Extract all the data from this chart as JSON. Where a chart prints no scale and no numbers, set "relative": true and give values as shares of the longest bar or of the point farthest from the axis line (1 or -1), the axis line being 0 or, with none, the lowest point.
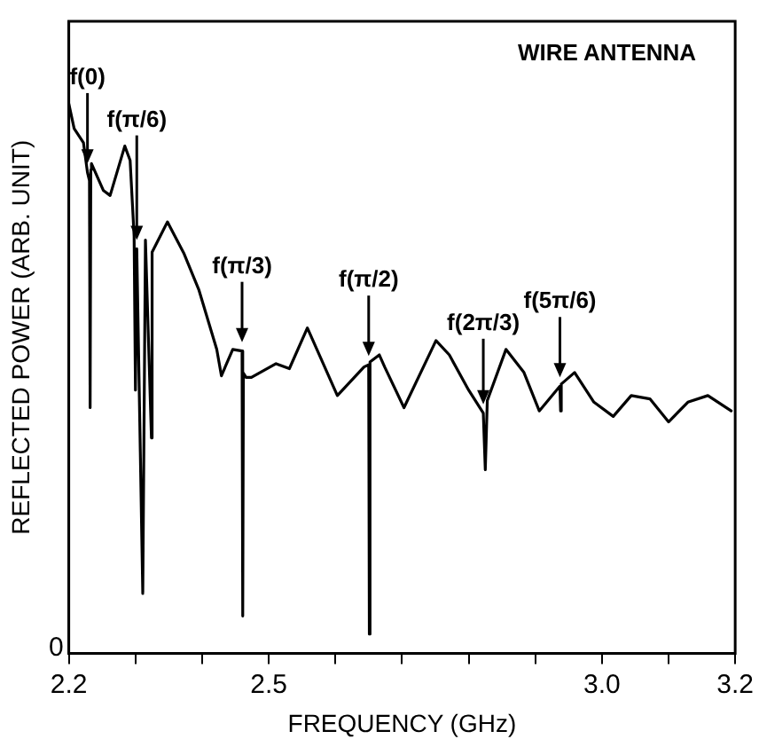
{
  "chart_data": {
    "type": "line",
    "xlabel": "FREQUENCY (GHz)",
    "ylabel": "REFLECTED POWER (ARB. UNIT)",
    "relative": true,
    "xlim": [
      2.2,
      3.2
    ],
    "xticks": [
      2.2,
      {
        "value": 2.3,
        "label": null
      },
      {
        "value": 2.4,
        "label": null
      },
      2.5,
      {
        "value": 2.6,
        "label": null
      },
      {
        "value": 2.7,
        "label": null
      },
      {
        "value": 2.8,
        "label": null
      },
      {
        "value": 2.9,
        "label": null
      },
      {
        "value": 3.0,
        "label": "3.0"
      },
      {
        "value": 3.1,
        "label": null
      },
      3.2
    ],
    "series": [
      {
        "color": "#000000",
        "x": [
          2.2,
          2.208,
          2.222,
          2.228,
          2.231,
          2.232,
          2.233,
          2.234,
          2.252,
          2.262,
          2.284,
          2.292,
          2.298,
          2.3,
          2.302,
          2.311,
          2.315,
          2.324,
          2.325,
          2.348,
          2.373,
          2.395,
          2.422,
          2.429,
          2.446,
          2.46,
          2.461,
          2.462,
          2.466,
          2.474,
          2.511,
          2.531,
          2.558,
          2.603,
          2.643,
          2.65,
          2.651,
          2.652,
          2.666,
          2.674,
          2.703,
          2.751,
          2.771,
          2.8,
          2.822,
          2.825,
          2.828,
          2.856,
          2.883,
          2.906,
          2.937,
          2.938,
          2.939,
          2.959,
          2.988,
          3.017,
          3.044,
          3.072,
          3.1,
          3.129,
          3.159,
          3.194
        ],
        "values": [
          1.0,
          0.955,
          0.929,
          0.875,
          0.86,
          0.447,
          0.88,
          0.891,
          0.842,
          0.833,
          0.923,
          0.897,
          0.759,
          0.479,
          0.736,
          0.109,
          0.752,
          0.392,
          0.73,
          0.785,
          0.727,
          0.662,
          0.553,
          0.505,
          0.553,
          0.55,
          0.068,
          0.51,
          0.502,
          0.502,
          0.527,
          0.518,
          0.592,
          0.469,
          0.521,
          0.525,
          0.035,
          0.53,
          0.543,
          0.521,
          0.447,
          0.569,
          0.543,
          0.479,
          0.437,
          0.334,
          0.46,
          0.553,
          0.511,
          0.441,
          0.486,
          0.441,
          0.49,
          0.511,
          0.457,
          0.431,
          0.469,
          0.463,
          0.421,
          0.457,
          0.469,
          0.441
        ]
      }
    ],
    "annotations": [
      "WIRE ANTENNA",
      "0",
      {
        "text": "f(0)",
        "x": 2.228,
        "y": 0.875
      },
      {
        "text": "f(π/6)",
        "x": 2.302,
        "y": 0.736
      },
      {
        "text": "f(π/3)",
        "x": 2.46,
        "y": 0.55
      },
      {
        "text": "f(π/2)",
        "x": 2.65,
        "y": 0.525
      },
      {
        "text": "f(2π/3)",
        "x": 2.822,
        "y": 0.437
      },
      {
        "text": "f(5π/6)",
        "x": 2.937,
        "y": 0.486
      }
    ]
  }
}
